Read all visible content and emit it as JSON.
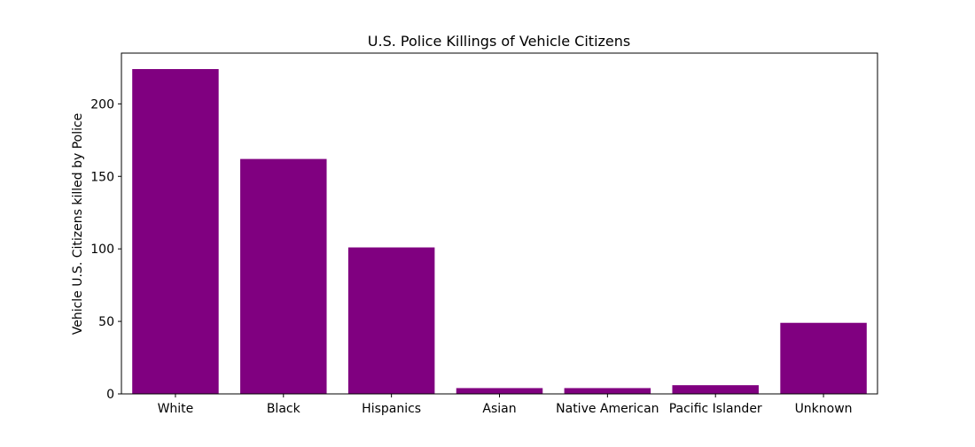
{
  "chart_data": {
    "type": "bar",
    "title": "U.S. Police Killings of Vehicle Citizens",
    "xlabel": "",
    "ylabel": "Vehicle U.S. Citizens killed by Police",
    "categories": [
      "White",
      "Black",
      "Hispanics",
      "Asian",
      "Native American",
      "Pacific Islander",
      "Unknown"
    ],
    "values": [
      224,
      162,
      101,
      4,
      4,
      6,
      49
    ],
    "ylim": [
      0,
      235
    ],
    "yticks": [
      0,
      50,
      100,
      150,
      200
    ],
    "grid": false,
    "legend": "none",
    "bar_color": "#800080"
  }
}
